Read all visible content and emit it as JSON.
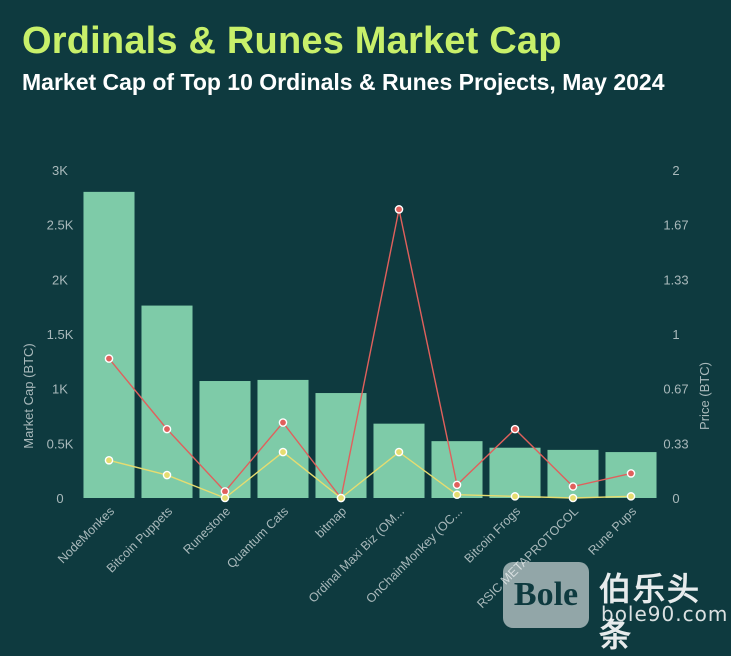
{
  "header": {
    "title": "Ordinals & Runes Market Cap",
    "subtitle": "Market Cap of Top 10 Ordinals & Runes Projects, May 2024"
  },
  "watermark": {
    "logo_text": "Bole",
    "brand_cn": "伯乐头条",
    "url": "bole90.com"
  },
  "chart_data": {
    "type": "bar",
    "categories": [
      "NodeMonkes",
      "Bitcoin Puppets",
      "Runestone",
      "Quantum Cats",
      "bitmap",
      "Ordinal Maxi Biz (OM...",
      "OnChainMonkey (OC...",
      "Bitcoin Frogs",
      "RSIC METAPROTOCOL",
      "Rune Pups"
    ],
    "series": [
      {
        "type": "bar",
        "axis": "left",
        "color": "#7ecba8",
        "values": [
          2800,
          1760,
          1070,
          1080,
          960,
          680,
          520,
          460,
          440,
          420
        ]
      },
      {
        "type": "line",
        "axis": "right",
        "color": "#e0605c",
        "values": [
          0.85,
          0.42,
          0.04,
          0.46,
          0.0,
          1.76,
          0.08,
          0.42,
          0.07,
          0.15
        ]
      },
      {
        "type": "line",
        "axis": "right",
        "color": "#e6dc70",
        "values": [
          0.23,
          0.14,
          0.0,
          0.28,
          0.0,
          0.28,
          0.02,
          0.01,
          0.0,
          0.01
        ]
      }
    ],
    "ylabel": "Market Cap (BTC)",
    "ylabel_right": "Price (BTC)",
    "ylim": [
      0,
      3000
    ],
    "ylim_right": [
      0,
      2
    ],
    "yticks": [
      "0",
      "0.5K",
      "1K",
      "1.5K",
      "2K",
      "2.5K",
      "3K"
    ],
    "yticks_right": [
      "0",
      "0.33",
      "0.67",
      "1",
      "1.33",
      "1.67",
      "2"
    ],
    "grid": false
  }
}
